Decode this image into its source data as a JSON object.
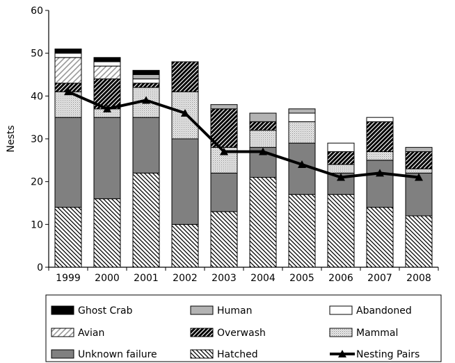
{
  "chart_data": {
    "type": "bar",
    "stacked": true,
    "title": "",
    "xlabel": "",
    "ylabel": "Nests",
    "ylim": [
      0,
      60
    ],
    "yticks": [
      0,
      10,
      20,
      30,
      40,
      50,
      60
    ],
    "grid": false,
    "legend_position": "bottom",
    "categories": [
      "1999",
      "2000",
      "2001",
      "2002",
      "2003",
      "2004",
      "2005",
      "2006",
      "2007",
      "2008"
    ],
    "series": [
      {
        "name": "Hatched",
        "pattern": "hatched",
        "values": [
          14,
          16,
          22,
          10,
          13,
          21,
          17,
          17,
          14,
          12
        ]
      },
      {
        "name": "Unknown failure",
        "pattern": "unknown",
        "values": [
          21,
          19,
          13,
          20,
          9,
          7,
          12,
          5,
          11,
          10
        ]
      },
      {
        "name": "Mammal",
        "pattern": "mammal",
        "values": [
          6,
          2,
          7,
          11,
          6,
          4,
          5,
          2,
          2,
          1
        ]
      },
      {
        "name": "Overwash",
        "pattern": "overwash",
        "values": [
          2,
          7,
          1,
          7,
          9,
          2,
          0,
          3,
          7,
          4
        ]
      },
      {
        "name": "Avian",
        "pattern": "avian",
        "values": [
          6,
          3,
          0,
          0,
          0,
          0,
          0,
          0,
          0,
          0
        ]
      },
      {
        "name": "Abandoned",
        "pattern": "abandoned",
        "values": [
          1,
          1,
          1,
          0,
          0,
          0,
          2,
          2,
          1,
          0
        ]
      },
      {
        "name": "Human",
        "pattern": "human",
        "values": [
          0,
          0,
          1,
          0,
          1,
          2,
          1,
          0,
          0,
          1
        ]
      },
      {
        "name": "Ghost Crab",
        "pattern": "ghostcrab",
        "values": [
          1,
          1,
          1,
          0,
          0,
          0,
          0,
          0,
          0,
          0
        ]
      }
    ],
    "line_series": {
      "name": "Nesting Pairs",
      "values": [
        41,
        37,
        39,
        36,
        27,
        27,
        24,
        21,
        22,
        21
      ]
    },
    "legend": [
      {
        "name": "Ghost Crab",
        "pattern": "ghostcrab"
      },
      {
        "name": "Human",
        "pattern": "human"
      },
      {
        "name": "Abandoned",
        "pattern": "abandoned"
      },
      {
        "name": "Avian",
        "pattern": "avian"
      },
      {
        "name": "Overwash",
        "pattern": "overwash"
      },
      {
        "name": "Mammal",
        "pattern": "mammal"
      },
      {
        "name": "Unknown failure",
        "pattern": "unknown"
      },
      {
        "name": "Hatched",
        "pattern": "hatched"
      },
      {
        "name": "Nesting Pairs",
        "pattern": "line"
      }
    ]
  }
}
